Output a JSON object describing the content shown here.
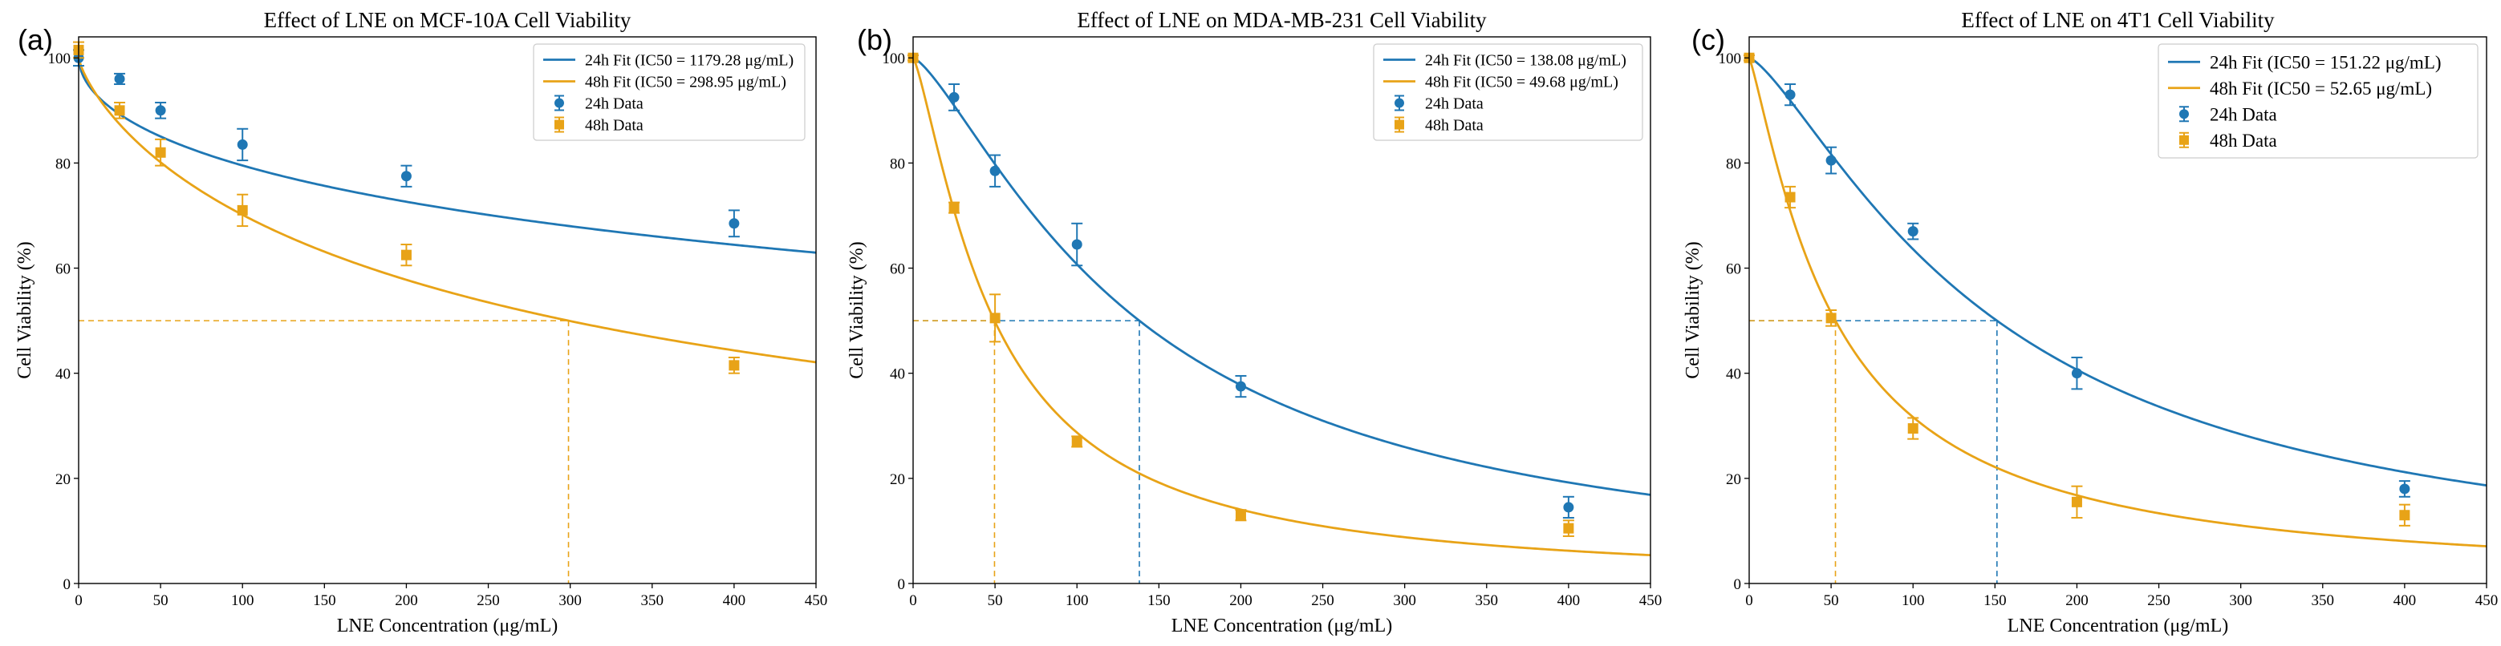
{
  "chart_data": [
    {
      "type": "line",
      "panel_label": "(a)",
      "title": "Effect of LNE on MCF-10A Cell Viability",
      "xlabel": "LNE Concentration (μg/mL)",
      "ylabel": "Cell Viability (%)",
      "xlim": [
        0,
        450
      ],
      "ylim": [
        0,
        104
      ],
      "xticks": [
        0,
        50,
        100,
        150,
        200,
        250,
        300,
        350,
        400,
        450
      ],
      "yticks": [
        0,
        20,
        40,
        60,
        80,
        100
      ],
      "legend_position": "top-right",
      "colors": {
        "24h": "#1f77b4",
        "48h": "#e8a317"
      },
      "fits": [
        {
          "name": "24h Fit (IC50 = 1179.28 μg/mL)",
          "series": "24h",
          "ic50": 1179.28,
          "hill": 0.55
        },
        {
          "name": "48h Fit (IC50 = 298.95 μg/mL)",
          "series": "48h",
          "ic50": 298.95,
          "hill": 0.78
        }
      ],
      "data_series": [
        {
          "name": "24h Data",
          "series": "24h",
          "marker": "circle",
          "x": [
            0,
            25,
            50,
            100,
            200,
            400
          ],
          "y": [
            100,
            96,
            90,
            83.5,
            77.5,
            68.5
          ],
          "err": [
            1.5,
            1,
            1.5,
            3,
            2,
            2.5
          ]
        },
        {
          "name": "48h Data",
          "series": "48h",
          "marker": "square",
          "x": [
            0,
            25,
            50,
            100,
            200,
            400
          ],
          "y": [
            101.5,
            90,
            82,
            71,
            62.5,
            41.5
          ],
          "err": [
            1.5,
            1.5,
            2.5,
            3,
            2,
            1.5
          ]
        }
      ],
      "ic50_guides": [
        {
          "series": "48h",
          "x": 298.95
        }
      ]
    },
    {
      "type": "line",
      "panel_label": "(b)",
      "title": "Effect of LNE on MDA-MB-231 Cell Viability",
      "xlabel": "LNE Concentration (μg/mL)",
      "ylabel": "Cell Viability (%)",
      "xlim": [
        0,
        450
      ],
      "ylim": [
        0,
        104
      ],
      "xticks": [
        0,
        50,
        100,
        150,
        200,
        250,
        300,
        350,
        400,
        450
      ],
      "yticks": [
        0,
        20,
        40,
        60,
        80,
        100
      ],
      "legend_position": "top-right",
      "colors": {
        "24h": "#1f77b4",
        "48h": "#e8a317"
      },
      "fits": [
        {
          "name": "24h Fit (IC50 = 138.08 μg/mL)",
          "series": "24h",
          "ic50": 138.08,
          "hill": 1.35
        },
        {
          "name": "48h Fit (IC50 = 49.68 μg/mL)",
          "series": "48h",
          "ic50": 49.68,
          "hill": 1.3
        }
      ],
      "data_series": [
        {
          "name": "24h Data",
          "series": "24h",
          "marker": "circle",
          "x": [
            0,
            25,
            50,
            100,
            200,
            400
          ],
          "y": [
            100,
            92.5,
            78.5,
            64.5,
            37.5,
            14.5
          ],
          "err": [
            0.5,
            2.5,
            3,
            4,
            2,
            2
          ]
        },
        {
          "name": "48h Data",
          "series": "48h",
          "marker": "square",
          "x": [
            0,
            25,
            50,
            100,
            200,
            400
          ],
          "y": [
            100,
            71.5,
            50.5,
            27,
            13,
            10.5
          ],
          "err": [
            0.5,
            1,
            4.5,
            1,
            1,
            1.5
          ]
        }
      ],
      "ic50_guides": [
        {
          "series": "24h",
          "x": 138.08
        },
        {
          "series": "48h",
          "x": 49.68
        }
      ]
    },
    {
      "type": "line",
      "panel_label": "(c)",
      "title": "Effect of LNE on 4T1 Cell Viability",
      "xlabel": "LNE Concentration (μg/mL)",
      "ylabel": "Cell Viability (%)",
      "xlim": [
        0,
        450
      ],
      "ylim": [
        0,
        104
      ],
      "xticks": [
        0,
        50,
        100,
        150,
        200,
        250,
        300,
        350,
        400,
        450
      ],
      "yticks": [
        0,
        20,
        40,
        60,
        80,
        100
      ],
      "legend_position": "top-right",
      "colors": {
        "24h": "#1f77b4",
        "48h": "#e8a317"
      },
      "fits": [
        {
          "name": "24h Fit (IC50 = 151.22 μg/mL)",
          "series": "24h",
          "ic50": 151.22,
          "hill": 1.35
        },
        {
          "name": "48h Fit (IC50 = 52.65 μg/mL)",
          "series": "48h",
          "ic50": 52.65,
          "hill": 1.2
        }
      ],
      "data_series": [
        {
          "name": "24h Data",
          "series": "24h",
          "marker": "circle",
          "x": [
            0,
            25,
            50,
            100,
            200,
            400
          ],
          "y": [
            100,
            93,
            80.5,
            67,
            40,
            18
          ],
          "err": [
            0.5,
            2,
            2.5,
            1.5,
            3,
            1.5
          ]
        },
        {
          "name": "48h Data",
          "series": "48h",
          "marker": "square",
          "x": [
            0,
            25,
            50,
            100,
            200,
            400
          ],
          "y": [
            100,
            73.5,
            50.5,
            29.5,
            15.5,
            13
          ],
          "err": [
            0.5,
            2,
            1.5,
            2,
            3,
            2
          ]
        }
      ],
      "ic50_guides": [
        {
          "series": "24h",
          "x": 151.22
        },
        {
          "series": "48h",
          "x": 52.65
        }
      ]
    }
  ]
}
